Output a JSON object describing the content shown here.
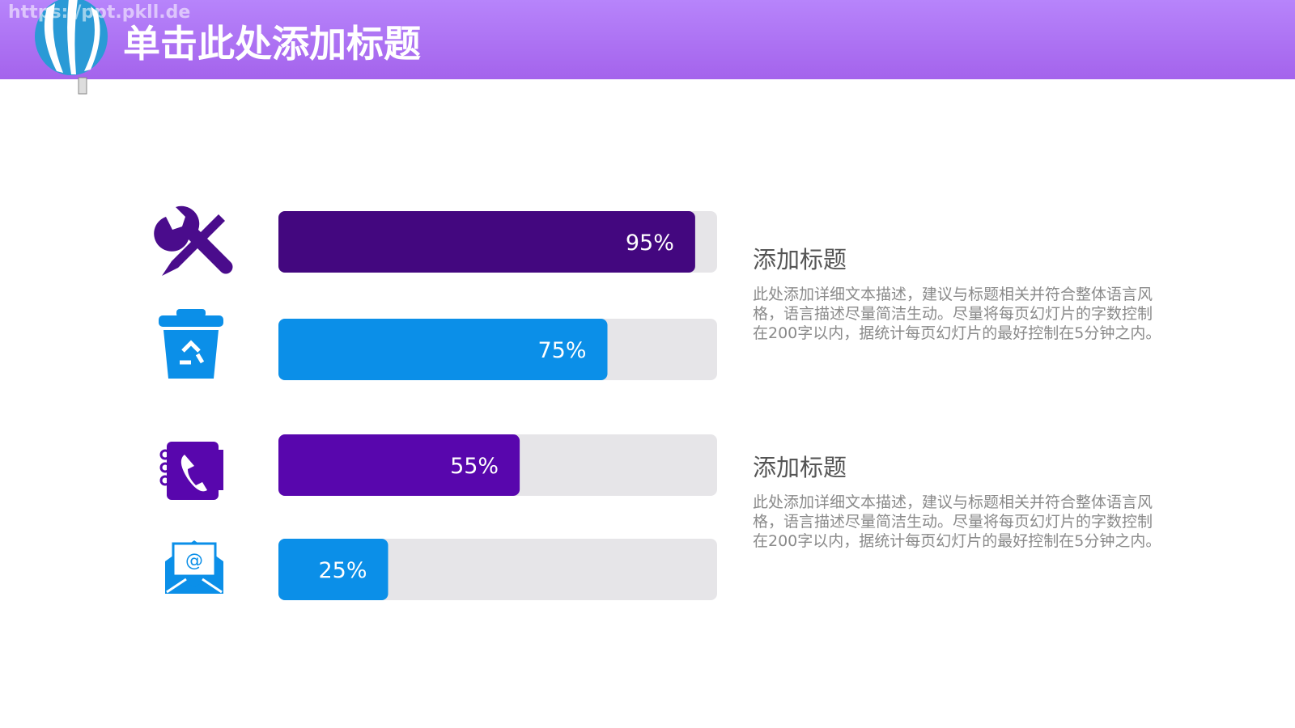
{
  "header": {
    "title": "单击此处添加标题",
    "watermark": "https://ppt.pkll.de"
  },
  "chart_data": {
    "type": "bar",
    "orientation": "horizontal",
    "categories": [
      null,
      null,
      null,
      null
    ],
    "values": [
      95,
      75,
      55,
      25
    ],
    "value_labels": [
      "95%",
      "75%",
      "55%",
      "25%"
    ],
    "colors": [
      "#43077f",
      "#0b8fe8",
      "#5806ad",
      "#0b8fe8"
    ],
    "track_color": "#e6e5e8",
    "xlim": [
      0,
      100
    ]
  },
  "text_blocks": [
    {
      "title": "添加标题",
      "text": "此处添加详细文本描述，建议与标题相关并符合整体语言风格，语言描述尽量简洁生动。尽量将每页幻灯片的字数控制在200字以内，据统计每页幻灯片的最好控制在5分钟之内。"
    },
    {
      "title": "添加标题",
      "text": "此处添加详细文本描述，建议与标题相关并符合整体语言风格，语言描述尽量简洁生动。尽量将每页幻灯片的字数控制在200字以内，据统计每页幻灯片的最好控制在5分钟之内。"
    }
  ]
}
